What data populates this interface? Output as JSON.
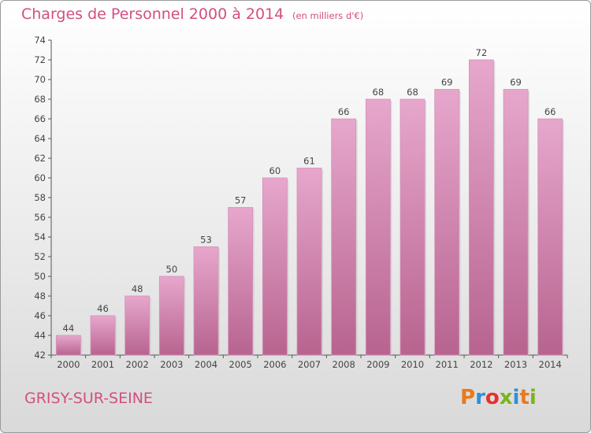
{
  "header": {
    "title": "Charges de Personnel 2000 à 2014",
    "unit_note": "(en milliers d'€)"
  },
  "footer": {
    "place_name": "GRISY-SUR-SEINE",
    "logo_text": "Proxiti",
    "logo_colors": [
      "#e87a1e",
      "#2f8fd6",
      "#e5312b",
      "#7ab51d",
      "#2f8fd6",
      "#e87a1e",
      "#7ab51d"
    ]
  },
  "colors": {
    "accent": "#d24f82",
    "bar_top": "#e7a7cc",
    "bar_bottom": "#b7648f",
    "axis": "#555555"
  },
  "chart_data": {
    "type": "bar",
    "categories": [
      "2000",
      "2001",
      "2002",
      "2003",
      "2004",
      "2005",
      "2006",
      "2007",
      "2008",
      "2009",
      "2010",
      "2011",
      "2012",
      "2013",
      "2014"
    ],
    "values": [
      44,
      46,
      48,
      50,
      53,
      57,
      60,
      61,
      66,
      68,
      68,
      69,
      72,
      69,
      66
    ],
    "ylim": [
      42,
      74
    ],
    "yticks": [
      42,
      44,
      46,
      48,
      50,
      52,
      54,
      56,
      58,
      60,
      62,
      64,
      66,
      68,
      70,
      72,
      74
    ],
    "grid": false,
    "data_labels": true
  }
}
